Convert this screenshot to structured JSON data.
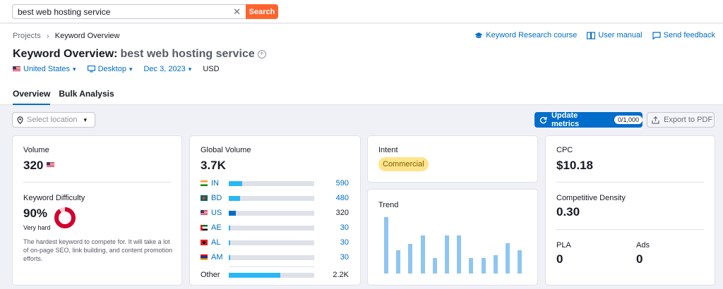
{
  "search": {
    "query": "best web hosting service",
    "button": "Search"
  },
  "breadcrumb": {
    "root": "Projects",
    "current": "Keyword Overview"
  },
  "links": {
    "course": "Keyword Research course",
    "manual": "User manual",
    "feedback": "Send feedback"
  },
  "title": {
    "prefix": "Keyword Overview:",
    "keyword": "best web hosting service"
  },
  "filters": {
    "country": "United States",
    "device": "Desktop",
    "date": "Dec 3, 2023",
    "currency": "USD"
  },
  "tabs": [
    "Overview",
    "Bulk Analysis"
  ],
  "location": {
    "placeholder": "Select location"
  },
  "update": {
    "label": "Update metrics",
    "badge": "0/1,000"
  },
  "export": {
    "label": "Export to PDF"
  },
  "volume": {
    "label": "Volume",
    "value": "320"
  },
  "kd": {
    "label": "Keyword Difficulty",
    "value": "90%",
    "level": "Very hard",
    "percent": 90,
    "description": "The hardest keyword to compete for. It will take a lot of on-page SEO, link building, and content promotion efforts."
  },
  "global_volume": {
    "label": "Global Volume",
    "value": "3.7K",
    "rows": [
      {
        "code": "IN",
        "value": "590",
        "share": 0.16
      },
      {
        "code": "BD",
        "value": "480",
        "share": 0.13
      },
      {
        "code": "US",
        "value": "320",
        "share": 0.08
      },
      {
        "code": "AE",
        "value": "30",
        "share": 0.02
      },
      {
        "code": "AL",
        "value": "30",
        "share": 0.02
      },
      {
        "code": "AM",
        "value": "30",
        "share": 0.02
      }
    ],
    "other": {
      "label": "Other",
      "value": "2.2K",
      "share": 0.6
    }
  },
  "intent": {
    "label": "Intent",
    "value": "Commercial"
  },
  "trend": {
    "label": "Trend",
    "values": [
      1.0,
      0.41,
      0.53,
      0.68,
      0.28,
      0.67,
      0.67,
      0.28,
      0.28,
      0.33,
      0.54,
      0.41
    ]
  },
  "cpc": {
    "label": "CPC",
    "value": "$10.18"
  },
  "density": {
    "label": "Competitive Density",
    "value": "0.30"
  },
  "pla": {
    "label": "PLA",
    "value": "0"
  },
  "ads": {
    "label": "Ads",
    "value": "0"
  },
  "colors": {
    "accent": "#006dca",
    "search_button": "#ff642d",
    "bar": "#2bb7f6",
    "kd_ring": "#d1002f",
    "intent_badge": "#ffe48c",
    "trend_bar": "#8ec6f1"
  }
}
